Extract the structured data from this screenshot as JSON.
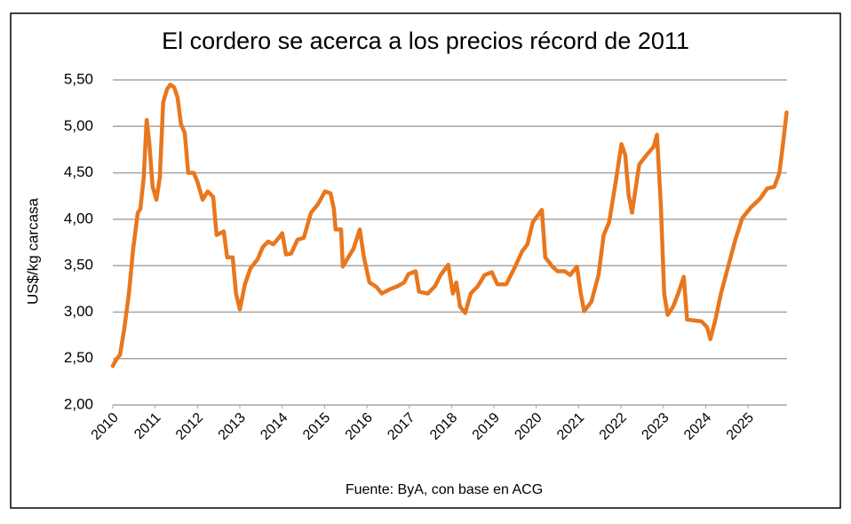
{
  "chart_data": {
    "type": "line",
    "title": "El cordero se acerca a los precios récord de 2011",
    "y_label": "US$/kg carcasa",
    "source": "Fuente: ByA, con base en ACG",
    "xlim": [
      2010,
      2025.92
    ],
    "xticks": [
      2010,
      2011,
      2012,
      2013,
      2014,
      2015,
      2016,
      2017,
      2018,
      2019,
      2020,
      2021,
      2022,
      2023,
      2024,
      2025
    ],
    "ylim": [
      2,
      5.5
    ],
    "yticks": [
      {
        "value": 2,
        "label": "2,00"
      },
      {
        "value": 2.5,
        "label": "2,50"
      },
      {
        "value": 3,
        "label": "3,00"
      },
      {
        "value": 3.5,
        "label": "3,50"
      },
      {
        "value": 4,
        "label": "4,00"
      },
      {
        "value": 4.5,
        "label": "4,50"
      },
      {
        "value": 5,
        "label": "5,00"
      },
      {
        "value": 5.5,
        "label": "5,50"
      }
    ],
    "grid": true,
    "series": [
      {
        "name": "US$/kg carcasa",
        "color": "#e8771e",
        "x": [
          2010.0,
          2010.08,
          2010.17,
          2010.27,
          2010.38,
          2010.48,
          2010.59,
          2010.65,
          2010.73,
          2010.8,
          2010.86,
          2010.94,
          2011.03,
          2011.11,
          2011.19,
          2011.28,
          2011.36,
          2011.45,
          2011.53,
          2011.61,
          2011.7,
          2011.78,
          2011.91,
          2012.0,
          2012.12,
          2012.24,
          2012.37,
          2012.45,
          2012.62,
          2012.7,
          2012.83,
          2012.91,
          2013.0,
          2013.12,
          2013.25,
          2013.42,
          2013.54,
          2013.67,
          2013.79,
          2013.92,
          2014.0,
          2014.09,
          2014.21,
          2014.36,
          2014.51,
          2014.68,
          2014.84,
          2015.01,
          2015.14,
          2015.22,
          2015.26,
          2015.39,
          2015.43,
          2015.56,
          2015.68,
          2015.83,
          2015.93,
          2016.06,
          2016.23,
          2016.35,
          2016.56,
          2016.73,
          2016.88,
          2016.98,
          2017.15,
          2017.23,
          2017.44,
          2017.61,
          2017.74,
          2017.92,
          2018.03,
          2018.11,
          2018.2,
          2018.32,
          2018.45,
          2018.62,
          2018.78,
          2018.95,
          2019.08,
          2019.29,
          2019.5,
          2019.66,
          2019.79,
          2019.92,
          2020.13,
          2020.21,
          2020.38,
          2020.5,
          2020.67,
          2020.8,
          2020.96,
          2021.05,
          2021.13,
          2021.3,
          2021.47,
          2021.59,
          2021.72,
          2021.89,
          2022.01,
          2022.1,
          2022.18,
          2022.26,
          2022.43,
          2022.6,
          2022.77,
          2022.85,
          2022.94,
          2023.02,
          2023.1,
          2023.23,
          2023.35,
          2023.48,
          2023.56,
          2023.9,
          2024.03,
          2024.11,
          2024.23,
          2024.36,
          2024.53,
          2024.7,
          2024.86,
          2025.07,
          2025.28,
          2025.45,
          2025.62,
          2025.74,
          2025.83,
          2025.91
        ],
        "values": [
          2.42,
          2.49,
          2.54,
          2.82,
          3.2,
          3.68,
          4.07,
          4.11,
          4.45,
          5.07,
          4.83,
          4.35,
          4.21,
          4.45,
          5.26,
          5.4,
          5.45,
          5.42,
          5.31,
          5.02,
          4.93,
          4.5,
          4.5,
          4.4,
          4.21,
          4.3,
          4.24,
          3.83,
          3.87,
          3.59,
          3.59,
          3.2,
          3.03,
          3.3,
          3.47,
          3.57,
          3.7,
          3.76,
          3.73,
          3.8,
          3.85,
          3.62,
          3.63,
          3.78,
          3.8,
          4.07,
          4.16,
          4.3,
          4.28,
          4.11,
          3.89,
          3.89,
          3.49,
          3.59,
          3.68,
          3.89,
          3.59,
          3.32,
          3.27,
          3.2,
          3.25,
          3.28,
          3.32,
          3.41,
          3.44,
          3.22,
          3.2,
          3.28,
          3.4,
          3.51,
          3.2,
          3.32,
          3.06,
          2.99,
          3.2,
          3.28,
          3.4,
          3.43,
          3.3,
          3.3,
          3.49,
          3.65,
          3.73,
          3.97,
          4.1,
          3.59,
          3.49,
          3.44,
          3.44,
          3.4,
          3.49,
          3.2,
          3.01,
          3.11,
          3.4,
          3.83,
          3.97,
          4.45,
          4.81,
          4.69,
          4.26,
          4.07,
          4.59,
          4.69,
          4.78,
          4.91,
          4.16,
          3.2,
          2.97,
          3.06,
          3.2,
          3.38,
          2.92,
          2.9,
          2.84,
          2.71,
          2.92,
          3.2,
          3.49,
          3.78,
          4.01,
          4.13,
          4.22,
          4.33,
          4.35,
          4.5,
          4.83,
          5.15
        ]
      }
    ]
  }
}
